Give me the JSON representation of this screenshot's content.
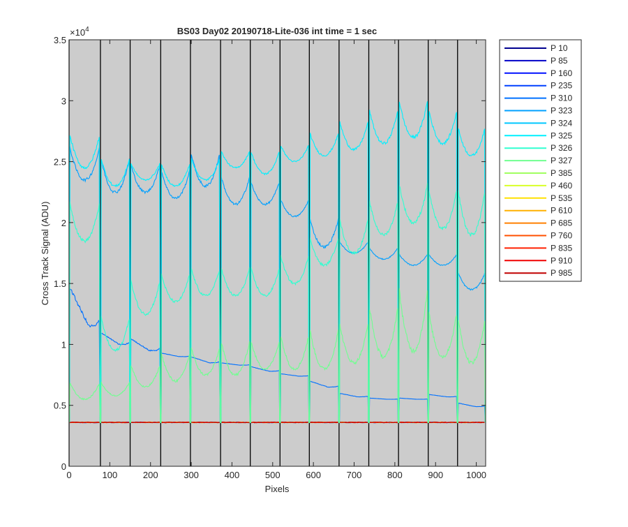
{
  "chart_data": {
    "type": "line",
    "title": "BS03 Day02 20190718-Lite-036 int time = 1 sec",
    "xlabel": "Pixels",
    "ylabel": "Cross Track Signal (ADU)",
    "xlim": [
      0,
      1023
    ],
    "ylim": [
      0,
      35000
    ],
    "exponent_label": "×10",
    "exponent_power": "4",
    "xticks": [
      0,
      100,
      200,
      300,
      400,
      500,
      600,
      700,
      800,
      900,
      1000
    ],
    "xtick_labels": [
      "0",
      "100",
      "200",
      "300",
      "400",
      "500",
      "600",
      "700",
      "800",
      "900",
      "1000"
    ],
    "yticks": [
      0,
      5000,
      10000,
      15000,
      20000,
      25000,
      30000,
      35000
    ],
    "ytick_labels": [
      "0",
      "0.5",
      "1",
      "1.5",
      "2",
      "2.5",
      "3",
      "3.5"
    ],
    "background_color": "#cccccc",
    "vertical_lines_x": [
      0,
      77,
      150,
      225,
      298,
      372,
      445,
      518,
      590,
      663,
      736,
      809,
      882,
      954
    ],
    "baseline": 3600,
    "segment_boundaries": [
      0,
      77,
      150,
      225,
      298,
      372,
      445,
      518,
      590,
      663,
      736,
      809,
      882,
      954,
      1023
    ],
    "series": [
      {
        "name": "P 10",
        "color": "#00008f",
        "values": null
      },
      {
        "name": "P 85",
        "color": "#0000c8",
        "values": null
      },
      {
        "name": "P 160",
        "color": "#0010ff",
        "values": null
      },
      {
        "name": "P 235",
        "color": "#0040ff",
        "values": null
      },
      {
        "name": "P 310",
        "color": "#0070ff",
        "segment_levels": [
          [
            14800,
            11500
          ],
          [
            11000,
            10000
          ],
          [
            10500,
            9500
          ],
          [
            9300,
            9000
          ],
          [
            9000,
            8500
          ],
          [
            8500,
            8300
          ],
          [
            8200,
            7800
          ],
          [
            7600,
            7400
          ],
          [
            7000,
            6500
          ],
          [
            6000,
            5700
          ],
          [
            5600,
            5500
          ],
          [
            5600,
            5500
          ],
          [
            5900,
            5700
          ],
          [
            5200,
            4900
          ]
        ],
        "shape": "decay"
      },
      {
        "name": "P 323",
        "color": "#00a0ff",
        "segment_levels": [
          [
            26500,
            23500
          ],
          [
            25500,
            22500
          ],
          [
            25000,
            22500
          ],
          [
            24500,
            22000
          ],
          [
            26000,
            23000
          ],
          [
            24000,
            21500
          ],
          [
            23500,
            21500
          ],
          [
            22000,
            20500
          ],
          [
            20500,
            18000
          ],
          [
            18500,
            17500
          ],
          [
            18000,
            17000
          ],
          [
            17500,
            16500
          ],
          [
            17500,
            16500
          ],
          [
            16000,
            14500
          ]
        ],
        "shape": "dip"
      },
      {
        "name": "P 324",
        "color": "#00c8ff",
        "values": null
      },
      {
        "name": "P 325",
        "color": "#00f0ff",
        "segment_levels": [
          [
            27500,
            24500
          ],
          [
            25500,
            23000
          ],
          [
            25000,
            23500
          ],
          [
            25000,
            23000
          ],
          [
            25500,
            23500
          ],
          [
            26000,
            24500
          ],
          [
            26000,
            24000
          ],
          [
            26500,
            25000
          ],
          [
            27500,
            25500
          ],
          [
            28500,
            26000
          ],
          [
            29500,
            26500
          ],
          [
            30300,
            27000
          ],
          [
            29500,
            26500
          ],
          [
            28000,
            25500
          ]
        ],
        "shape": "dip"
      },
      {
        "name": "P 326",
        "color": "#30ffd0",
        "segment_levels": [
          [
            22000,
            18500
          ],
          [
            12500,
            9500
          ],
          [
            15500,
            12500
          ],
          [
            16000,
            13500
          ],
          [
            16500,
            14000
          ],
          [
            16500,
            14000
          ],
          [
            16500,
            14000
          ],
          [
            17500,
            15000
          ],
          [
            19000,
            16500
          ],
          [
            20500,
            17500
          ],
          [
            22000,
            19000
          ],
          [
            23500,
            20000
          ],
          [
            23000,
            19500
          ],
          [
            23000,
            19000
          ]
        ],
        "shape": "dip"
      },
      {
        "name": "P 327",
        "color": "#70ff90",
        "segment_levels": [
          [
            7000,
            5500
          ],
          [
            7000,
            5800
          ],
          [
            8500,
            6500
          ],
          [
            9500,
            7000
          ],
          [
            10000,
            7500
          ],
          [
            10500,
            7500
          ],
          [
            10500,
            8000
          ],
          [
            11000,
            8000
          ],
          [
            11500,
            8000
          ],
          [
            12000,
            8500
          ],
          [
            13500,
            9000
          ],
          [
            15000,
            9500
          ],
          [
            13000,
            9000
          ],
          [
            12500,
            8500
          ]
        ],
        "shape": "dip"
      },
      {
        "name": "P 385",
        "color": "#a0ff60",
        "values": null
      },
      {
        "name": "P 460",
        "color": "#d8ff28",
        "values": null
      },
      {
        "name": "P 535",
        "color": "#ffe000",
        "values": null
      },
      {
        "name": "P 610",
        "color": "#ffb000",
        "values": null
      },
      {
        "name": "P 685",
        "color": "#ff8000",
        "values": null
      },
      {
        "name": "P 760",
        "color": "#ff5000",
        "values": null
      },
      {
        "name": "P 835",
        "color": "#ff2000",
        "values": null
      },
      {
        "name": "P 910",
        "color": "#f00000",
        "values": null
      },
      {
        "name": "P 985",
        "color": "#c00000",
        "values": null
      }
    ]
  }
}
